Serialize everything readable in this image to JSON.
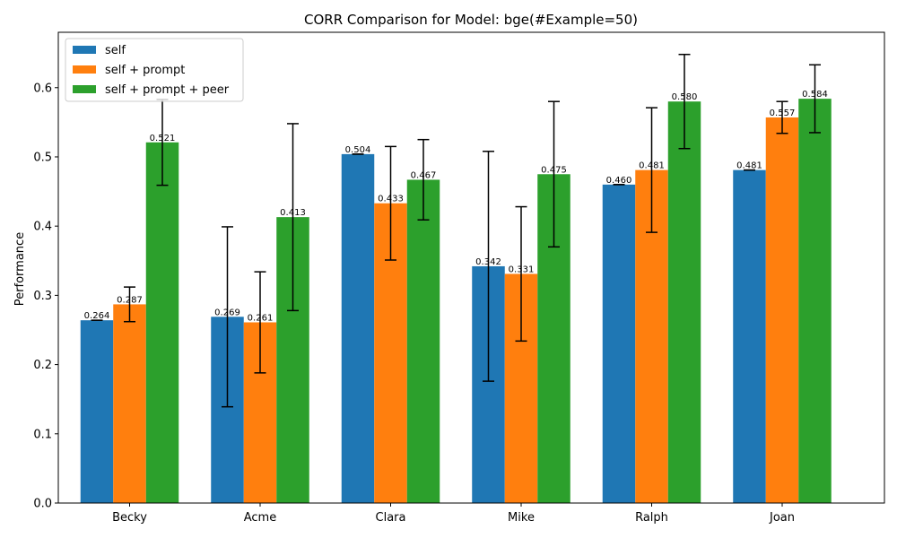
{
  "chart_data": {
    "type": "bar",
    "title": "CORR Comparison for Model: bge(#Example=50)",
    "xlabel": "",
    "ylabel": "Performance",
    "ylim": [
      0,
      0.68
    ],
    "yticks": [
      "0.0",
      "0.1",
      "0.2",
      "0.3",
      "0.4",
      "0.5",
      "0.6"
    ],
    "categories": [
      "Becky",
      "Acme",
      "Clara",
      "Mike",
      "Ralph",
      "Joan"
    ],
    "grid": false,
    "legend_position": "top-left",
    "series": [
      {
        "name": "self",
        "color": "#1f77b4",
        "values": [
          0.264,
          0.269,
          0.504,
          0.342,
          0.46,
          0.481
        ],
        "labels": [
          "0.264",
          "0.269",
          "0.504",
          "0.342",
          "0.460",
          "0.481"
        ],
        "error": [
          0.0,
          0.13,
          0.0,
          0.166,
          0.0,
          0.0
        ]
      },
      {
        "name": "self + prompt",
        "color": "#ff7f0e",
        "values": [
          0.287,
          0.261,
          0.433,
          0.331,
          0.481,
          0.557
        ],
        "labels": [
          "0.287",
          "0.261",
          "0.433",
          "0.331",
          "0.481",
          "0.557"
        ],
        "error": [
          0.025,
          0.073,
          0.082,
          0.097,
          0.09,
          0.023
        ]
      },
      {
        "name": "self + prompt + peer",
        "color": "#2ca02c",
        "values": [
          0.521,
          0.413,
          0.467,
          0.475,
          0.58,
          0.584
        ],
        "labels": [
          "0.521",
          "0.413",
          "0.467",
          "0.475",
          "0.580",
          "0.584"
        ],
        "error": [
          0.062,
          0.135,
          0.058,
          0.105,
          0.068,
          0.049
        ]
      }
    ]
  }
}
